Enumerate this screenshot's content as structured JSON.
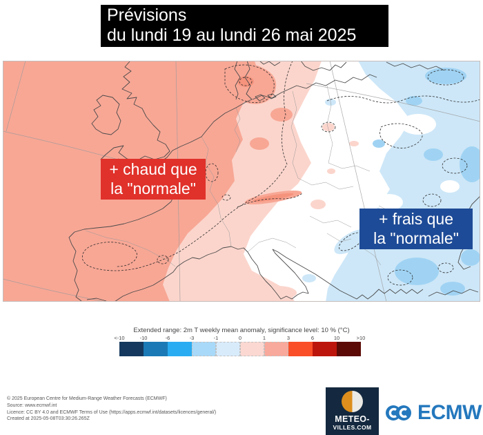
{
  "title": {
    "line1": "Prévisions",
    "line2": "du lundi 19 au lundi 26 mai 2025"
  },
  "map": {
    "warm_label": {
      "line1": "+ chaud que",
      "line2": "la \"normale\""
    },
    "cool_label": {
      "line1": "+ frais que",
      "line2": "la \"normale\""
    }
  },
  "legend": {
    "caption": "Extended range: 2m T weekly mean anomaly, significance level: 10 % (°C)",
    "ticks": [
      "<-10",
      "-10",
      "-6",
      "-3",
      "-1",
      "0",
      "1",
      "3",
      "6",
      "10",
      ">10"
    ],
    "colors": [
      "#15395e",
      "#1b7ab5",
      "#29acf1",
      "#a9d9f8",
      "#d8ebfb",
      "#fbd8d2",
      "#f8a99b",
      "#f94e28",
      "#bc150b",
      "#5b0a05"
    ],
    "dashed_cells": [
      3,
      4,
      5,
      6
    ]
  },
  "colors": {
    "warm_box": "#e0312a",
    "cool_box": "#1e4b97",
    "map_warm": "#f8a795",
    "map_warm_light": "#fbd5cc",
    "map_cool_light": "#cde7f8",
    "map_cool_mid": "#a0d3f3",
    "ecmwf_blue": "#2478bd",
    "meteovilles_navy": "#14293f",
    "meteovilles_orange": "#dd8e1c"
  },
  "footer": {
    "lines": [
      "© 2025 European Centre for Medium-Range Weather Forecasts (ECMWF)",
      "Source: www.ecmwf.int",
      "Licence: CC BY 4.0 and ECMWF Terms of Use (https://apps.ecmwf.int/datasets/licences/general/)",
      "Created at 2025-05-08T03:30:26.265Z"
    ],
    "meteovilles": {
      "line1": "METEO-",
      "line2": "VILLES.COM"
    },
    "ecmwf_wordmark": "ECMWF"
  }
}
